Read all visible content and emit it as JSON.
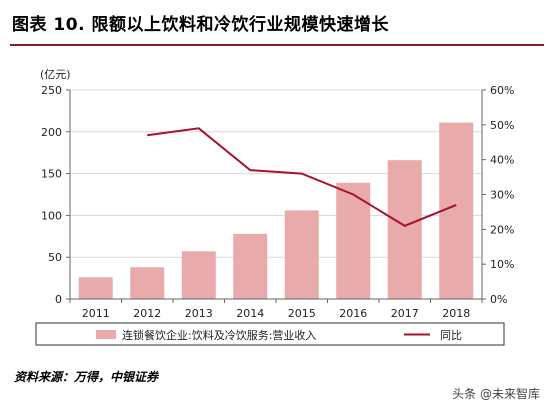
{
  "header": {
    "title": "图表 10. 限额以上饮料和冷饮行业规模快速增长"
  },
  "footer": {
    "source": "资料来源：万得，中银证券",
    "watermark": "头条 @未来智库"
  },
  "colors": {
    "bar": "#e8aaaa",
    "line": "#a8122a",
    "rule": "#8b1a2b"
  },
  "chart_data": {
    "type": "bar",
    "categories": [
      "2011",
      "2012",
      "2013",
      "2014",
      "2015",
      "2016",
      "2017",
      "2018"
    ],
    "series": [
      {
        "name": "连锁餐饮企业:饮料及冷饮服务:营业收入",
        "type": "bar",
        "axis": "left",
        "values": [
          26,
          38,
          57,
          78,
          106,
          139,
          166,
          211
        ]
      },
      {
        "name": "同比",
        "type": "line",
        "axis": "right",
        "values": [
          null,
          0.47,
          0.49,
          0.37,
          0.36,
          0.3,
          0.21,
          0.27
        ]
      }
    ],
    "y_left": {
      "unit_label": "(亿元)",
      "lim": [
        0,
        250
      ],
      "ticks": [
        "0",
        "50",
        "100",
        "150",
        "200",
        "250"
      ]
    },
    "y_right": {
      "lim": [
        0,
        0.6
      ],
      "ticks": [
        "0%",
        "10%",
        "20%",
        "30%",
        "40%",
        "50%",
        "60%"
      ]
    },
    "grid": true,
    "legend_position": "bottom"
  }
}
